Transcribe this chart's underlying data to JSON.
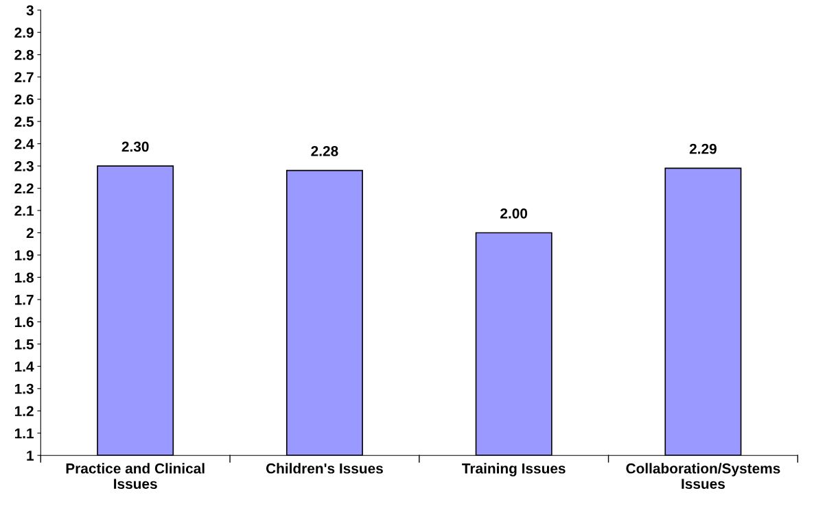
{
  "chart_data": {
    "type": "bar",
    "categories": [
      "Practice and Clinical\nIssues",
      "Children's Issues",
      "Training Issues",
      "Collaboration/Systems\nIssues"
    ],
    "values": [
      2.3,
      2.28,
      2.0,
      2.29
    ],
    "value_labels": [
      "2.30",
      "2.28",
      "2.00",
      "2.29"
    ],
    "color": "#9999ff",
    "ylim": [
      1,
      3
    ],
    "yticks": [
      1,
      1.1,
      1.2,
      1.3,
      1.4,
      1.5,
      1.6,
      1.7,
      1.8,
      1.9,
      2,
      2.1,
      2.2,
      2.3,
      2.4,
      2.5,
      2.6,
      2.7,
      2.8,
      2.9,
      3
    ],
    "grid": false,
    "legend": false
  }
}
